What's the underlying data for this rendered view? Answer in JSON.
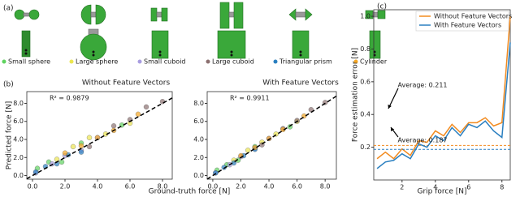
{
  "panel_labels": [
    "(a)",
    "(b)",
    "(c)"
  ],
  "chart_data": [
    {
      "type": "scatter",
      "title": "Without Feature Vectors",
      "annotation": "R² = 0.9879",
      "x_label": "Ground-truth force [N]",
      "y_label": "Predicted force [N]",
      "xlim": [
        -0.35,
        8.6
      ],
      "ylim": [
        -0.4,
        9.3
      ],
      "xticks": [
        {
          "value": 0,
          "label": "0.0"
        },
        {
          "value": 2,
          "label": "2.0"
        },
        {
          "value": 4,
          "label": "4.0"
        },
        {
          "value": 6,
          "label": "6.0"
        },
        {
          "value": 8,
          "label": "8.0"
        }
      ],
      "yticks": [
        {
          "value": 0,
          "label": "0.0"
        },
        {
          "value": 2,
          "label": "2.0"
        },
        {
          "value": 4,
          "label": "4.0"
        },
        {
          "value": 6,
          "label": "6.0"
        },
        {
          "value": 8,
          "label": "8.0"
        }
      ],
      "series": [
        {
          "name": "Small sphere",
          "color": "#5fd35f",
          "x": [
            0.3,
            1.0,
            1.8,
            3.0,
            5.5
          ],
          "values": [
            0.8,
            1.5,
            1.5,
            3.6,
            5.6
          ]
        },
        {
          "name": "Large sphere",
          "color": "#ece650",
          "x": [
            1.5,
            2.5,
            3.5,
            4.5,
            6.0
          ],
          "values": [
            1.8,
            3.2,
            4.2,
            4.6,
            5.8
          ]
        },
        {
          "name": "Small cuboid",
          "color": "#a89de0",
          "x": [
            0.2,
            1.2,
            2.0,
            3.0,
            4.0
          ],
          "values": [
            0.3,
            1.3,
            2.2,
            2.8,
            4.2
          ]
        },
        {
          "name": "Large cuboid",
          "color": "#8c7070",
          "x": [
            3.5,
            5.0,
            6.0,
            7.0,
            8.0
          ],
          "values": [
            3.2,
            5.5,
            6.2,
            7.6,
            8.2
          ]
        },
        {
          "name": "Triangular prism",
          "color": "#2a7fc0",
          "x": [
            0.2,
            0.8,
            1.5,
            2.2,
            3.0
          ],
          "values": [
            0.4,
            1.0,
            1.3,
            2.3,
            2.6
          ]
        },
        {
          "name": "Cylinder",
          "color": "#f5a623",
          "x": [
            2.0,
            3.0,
            4.0,
            5.0,
            6.5
          ],
          "values": [
            2.5,
            3.3,
            4.2,
            5.0,
            6.8
          ]
        }
      ]
    },
    {
      "type": "scatter",
      "title": "With Feature Vectors",
      "annotation": "R² = 0.9911",
      "xlim": [
        -0.4,
        8.8
      ],
      "ylim": [
        -0.4,
        9.3
      ],
      "xticks": [
        {
          "value": 0,
          "label": "0.0"
        },
        {
          "value": 2,
          "label": "2.0"
        },
        {
          "value": 4,
          "label": "4.0"
        },
        {
          "value": 6,
          "label": "6.0"
        },
        {
          "value": 8,
          "label": "8.0"
        }
      ],
      "yticks": [
        {
          "value": 0,
          "label": "0.0"
        },
        {
          "value": 2,
          "label": "2.0"
        },
        {
          "value": 4,
          "label": "4.0"
        },
        {
          "value": 6,
          "label": "6.0"
        },
        {
          "value": 8,
          "label": "8.0"
        }
      ],
      "series": [
        {
          "color": "#5fd35f",
          "x": [
            0.3,
            1.0,
            1.8,
            3.0,
            5.5
          ],
          "values": [
            0.6,
            1.2,
            1.7,
            3.2,
            5.4
          ]
        },
        {
          "color": "#ece650",
          "x": [
            1.5,
            2.5,
            3.5,
            4.5,
            6.0
          ],
          "values": [
            1.7,
            2.8,
            3.7,
            4.6,
            6.0
          ]
        },
        {
          "color": "#a89de0",
          "x": [
            0.2,
            1.2,
            2.0,
            3.0,
            4.0
          ],
          "values": [
            0.3,
            1.2,
            2.1,
            3.0,
            4.1
          ]
        },
        {
          "color": "#8c7070",
          "x": [
            3.5,
            5.0,
            6.0,
            7.0,
            8.0
          ],
          "values": [
            3.4,
            5.2,
            6.1,
            7.3,
            8.1
          ]
        },
        {
          "color": "#2a7fc0",
          "x": [
            0.2,
            0.8,
            1.5,
            2.2,
            3.0
          ],
          "values": [
            0.3,
            0.9,
            1.4,
            2.2,
            2.9
          ]
        },
        {
          "color": "#f5a623",
          "x": [
            2.0,
            3.0,
            4.0,
            5.0,
            6.5
          ],
          "values": [
            2.2,
            3.1,
            4.1,
            5.1,
            6.6
          ]
        }
      ]
    },
    {
      "type": "line",
      "x_label": "Grip force [N]",
      "y_label": "Force estimation error [N]",
      "xlim": [
        0.3,
        8.5
      ],
      "ylim": [
        0,
        1.04
      ],
      "xticks": [
        2,
        4,
        6,
        8
      ],
      "yticks": [
        0.2,
        0.4,
        0.6,
        0.8,
        {
          "value": 1,
          "label": "1.0"
        }
      ],
      "x": [
        0.5,
        1,
        1.5,
        2,
        2.5,
        3,
        3.5,
        4,
        4.5,
        5,
        5.5,
        6,
        6.5,
        7,
        7.5,
        8,
        8.5
      ],
      "series": [
        {
          "name": "Without Feature Vectors",
          "color": "#f28a1e",
          "values": [
            0.13,
            0.17,
            0.13,
            0.19,
            0.15,
            0.24,
            0.23,
            0.3,
            0.27,
            0.34,
            0.29,
            0.35,
            0.35,
            0.38,
            0.33,
            0.35,
            1.0
          ]
        },
        {
          "name": "With Feature Vectors",
          "color": "#2a7fc0",
          "values": [
            0.07,
            0.11,
            0.12,
            0.16,
            0.13,
            0.22,
            0.2,
            0.27,
            0.24,
            0.32,
            0.27,
            0.34,
            0.32,
            0.36,
            0.3,
            0.26,
            0.84
          ]
        }
      ],
      "annotations": [
        {
          "text": "Average: 0.211",
          "value": 0.211
        },
        {
          "text": "Average: 0.187",
          "value": 0.187
        }
      ]
    }
  ]
}
